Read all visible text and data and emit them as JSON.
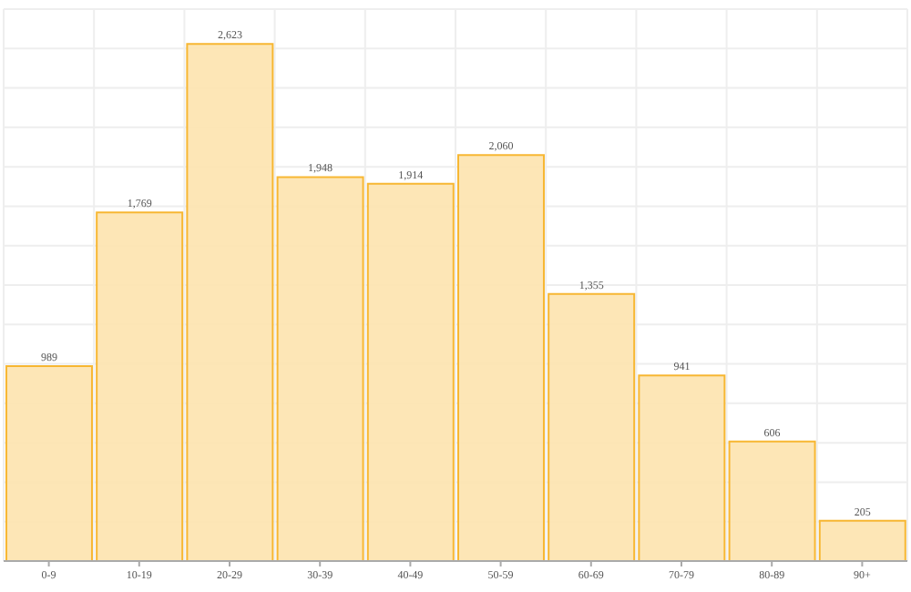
{
  "chart_data": {
    "type": "bar",
    "categories": [
      "0-9",
      "10-19",
      "20-29",
      "30-39",
      "40-49",
      "50-59",
      "60-69",
      "70-79",
      "80-89",
      "90+"
    ],
    "values": [
      989,
      1769,
      2623,
      1948,
      1914,
      2060,
      1355,
      941,
      606,
      205
    ],
    "value_labels": [
      "989",
      "1,769",
      "2,623",
      "1,948",
      "1,914",
      "2,060",
      "1,355",
      "941",
      "606",
      "205"
    ],
    "color": "#fde3ae",
    "ylim": [
      0,
      2800
    ],
    "grid": true,
    "tick_labels": "x"
  }
}
